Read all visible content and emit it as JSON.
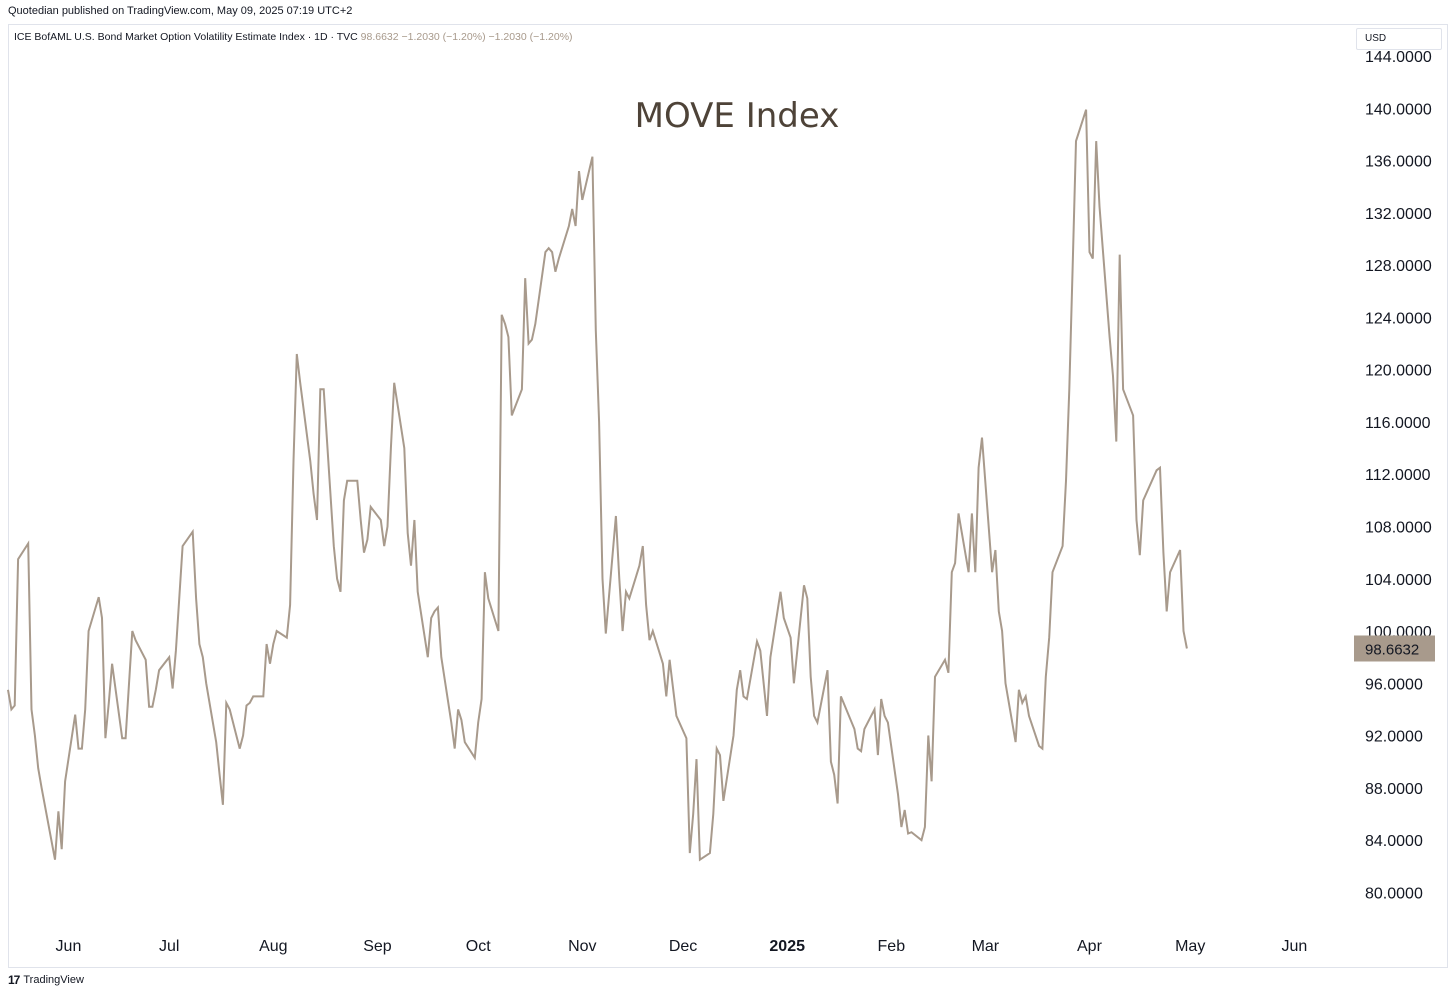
{
  "header": {
    "published": "Quotedian published on TradingView.com, May 09, 2025 07:19 UTC+2"
  },
  "legend": {
    "symbol": "ICE BofAML U.S. Bond Market Option Volatility Estimate Index · 1D · TVC",
    "values": "98.6632  −1.2030 (−1.20%)  −1.2030 (−1.20%)"
  },
  "currency_label": "USD",
  "footer": {
    "logo_glyph": "17",
    "brand": "TradingView"
  },
  "colors": {
    "line": "#a89a8c",
    "title": "#4e4338",
    "price_tag_bg": "#a89a8c",
    "price_tag_text": "#131722"
  },
  "chart_data": {
    "type": "line",
    "title": "MOVE Index",
    "xlabel": "",
    "ylabel": "",
    "ylim": [
      77.5,
      146
    ],
    "y_ticks": [
      80,
      84,
      88,
      92,
      96,
      100,
      104,
      108,
      112,
      116,
      120,
      124,
      128,
      132,
      136,
      140,
      144
    ],
    "y_tick_labels": [
      "80.0000",
      "84.0000",
      "88.0000",
      "92.0000",
      "96.0000",
      "100.0000",
      "104.0000",
      "108.0000",
      "112.0000",
      "116.0000",
      "120.0000",
      "124.0000",
      "128.0000",
      "132.0000",
      "136.0000",
      "140.0000",
      "144.0000"
    ],
    "x_range": [
      "2024-05-14",
      "2025-06-14"
    ],
    "x_ticks": [
      {
        "date": "2024-06-01",
        "label": "Jun",
        "bold": false
      },
      {
        "date": "2024-07-01",
        "label": "Jul",
        "bold": false
      },
      {
        "date": "2024-08-01",
        "label": "Aug",
        "bold": false
      },
      {
        "date": "2024-09-01",
        "label": "Sep",
        "bold": false
      },
      {
        "date": "2024-10-01",
        "label": "Oct",
        "bold": false
      },
      {
        "date": "2024-11-01",
        "label": "Nov",
        "bold": false
      },
      {
        "date": "2024-12-01",
        "label": "Dec",
        "bold": false
      },
      {
        "date": "2025-01-01",
        "label": "2025",
        "bold": true
      },
      {
        "date": "2025-02-01",
        "label": "Feb",
        "bold": false
      },
      {
        "date": "2025-03-01",
        "label": "Mar",
        "bold": false
      },
      {
        "date": "2025-04-01",
        "label": "Apr",
        "bold": false
      },
      {
        "date": "2025-05-01",
        "label": "May",
        "bold": false
      },
      {
        "date": "2025-06-01",
        "label": "Jun",
        "bold": false
      }
    ],
    "last_value_label": "98.6632",
    "grid": false,
    "series": [
      {
        "values": [
          [
            "2024-05-14",
            95.5
          ],
          [
            "2024-05-15",
            94.0
          ],
          [
            "2024-05-16",
            94.3
          ],
          [
            "2024-05-17",
            105.5
          ],
          [
            "2024-05-20",
            106.7
          ],
          [
            "2024-05-21",
            94.0
          ],
          [
            "2024-05-22",
            92.0
          ],
          [
            "2024-05-23",
            89.5
          ],
          [
            "2024-05-24",
            88.0
          ],
          [
            "2024-05-28",
            82.5
          ],
          [
            "2024-05-29",
            86.2
          ],
          [
            "2024-05-30",
            83.3
          ],
          [
            "2024-05-31",
            88.5
          ],
          [
            "2024-06-03",
            93.6
          ],
          [
            "2024-06-04",
            91.0
          ],
          [
            "2024-06-05",
            91.0
          ],
          [
            "2024-06-06",
            94.0
          ],
          [
            "2024-06-07",
            100.0
          ],
          [
            "2024-06-10",
            102.6
          ],
          [
            "2024-06-11",
            101.0
          ],
          [
            "2024-06-12",
            91.8
          ],
          [
            "2024-06-13",
            94.5
          ],
          [
            "2024-06-14",
            97.5
          ],
          [
            "2024-06-17",
            91.8
          ],
          [
            "2024-06-18",
            91.8
          ],
          [
            "2024-06-20",
            100.0
          ],
          [
            "2024-06-21",
            99.3
          ],
          [
            "2024-06-24",
            97.8
          ],
          [
            "2024-06-25",
            94.2
          ],
          [
            "2024-06-26",
            94.2
          ],
          [
            "2024-06-27",
            95.5
          ],
          [
            "2024-06-28",
            97.0
          ],
          [
            "2024-07-01",
            98.0
          ],
          [
            "2024-07-02",
            95.6
          ],
          [
            "2024-07-03",
            98.5
          ],
          [
            "2024-07-05",
            106.5
          ],
          [
            "2024-07-08",
            107.6
          ],
          [
            "2024-07-09",
            102.5
          ],
          [
            "2024-07-10",
            99.0
          ],
          [
            "2024-07-11",
            98.0
          ],
          [
            "2024-07-12",
            96.0
          ],
          [
            "2024-07-15",
            91.5
          ],
          [
            "2024-07-16",
            89.0
          ],
          [
            "2024-07-17",
            86.7
          ],
          [
            "2024-07-18",
            94.5
          ],
          [
            "2024-07-19",
            94.0
          ],
          [
            "2024-07-22",
            91.0
          ],
          [
            "2024-07-23",
            92.0
          ],
          [
            "2024-07-24",
            94.3
          ],
          [
            "2024-07-25",
            94.5
          ],
          [
            "2024-07-26",
            95.0
          ],
          [
            "2024-07-29",
            95.0
          ],
          [
            "2024-07-30",
            99.0
          ],
          [
            "2024-07-31",
            97.5
          ],
          [
            "2024-08-01",
            99.0
          ],
          [
            "2024-08-02",
            100.0
          ],
          [
            "2024-08-05",
            99.5
          ],
          [
            "2024-08-06",
            102.0
          ],
          [
            "2024-08-07",
            113.0
          ],
          [
            "2024-08-08",
            121.2
          ],
          [
            "2024-08-09",
            119.0
          ],
          [
            "2024-08-12",
            113.0
          ],
          [
            "2024-08-13",
            110.5
          ],
          [
            "2024-08-14",
            108.5
          ],
          [
            "2024-08-15",
            118.5
          ],
          [
            "2024-08-16",
            118.5
          ],
          [
            "2024-08-19",
            106.5
          ],
          [
            "2024-08-20",
            104.0
          ],
          [
            "2024-08-21",
            103.0
          ],
          [
            "2024-08-22",
            110.0
          ],
          [
            "2024-08-23",
            111.5
          ],
          [
            "2024-08-26",
            111.5
          ],
          [
            "2024-08-27",
            108.5
          ],
          [
            "2024-08-28",
            106.0
          ],
          [
            "2024-08-29",
            107.0
          ],
          [
            "2024-08-30",
            109.5
          ],
          [
            "2024-09-02",
            108.5
          ],
          [
            "2024-09-03",
            106.5
          ],
          [
            "2024-09-04",
            108.0
          ],
          [
            "2024-09-05",
            114.0
          ],
          [
            "2024-09-06",
            119.0
          ],
          [
            "2024-09-09",
            114.0
          ],
          [
            "2024-09-10",
            107.5
          ],
          [
            "2024-09-11",
            105.0
          ],
          [
            "2024-09-12",
            108.5
          ],
          [
            "2024-09-13",
            103.0
          ],
          [
            "2024-09-16",
            98.0
          ],
          [
            "2024-09-17",
            101.0
          ],
          [
            "2024-09-18",
            101.5
          ],
          [
            "2024-09-19",
            101.8
          ],
          [
            "2024-09-20",
            98.0
          ],
          [
            "2024-09-23",
            93.0
          ],
          [
            "2024-09-24",
            91.0
          ],
          [
            "2024-09-25",
            94.0
          ],
          [
            "2024-09-26",
            93.2
          ],
          [
            "2024-09-27",
            91.5
          ],
          [
            "2024-09-30",
            90.3
          ],
          [
            "2024-10-01",
            93.0
          ],
          [
            "2024-10-02",
            94.8
          ],
          [
            "2024-10-03",
            104.5
          ],
          [
            "2024-10-04",
            102.5
          ],
          [
            "2024-10-07",
            100.0
          ],
          [
            "2024-10-08",
            124.2
          ],
          [
            "2024-10-09",
            123.5
          ],
          [
            "2024-10-10",
            122.5
          ],
          [
            "2024-10-11",
            116.5
          ],
          [
            "2024-10-14",
            118.5
          ],
          [
            "2024-10-15",
            127.0
          ],
          [
            "2024-10-16",
            122.0
          ],
          [
            "2024-10-17",
            122.3
          ],
          [
            "2024-10-18",
            123.5
          ],
          [
            "2024-10-21",
            129.0
          ],
          [
            "2024-10-22",
            129.3
          ],
          [
            "2024-10-23",
            129.0
          ],
          [
            "2024-10-24",
            127.5
          ],
          [
            "2024-10-25",
            128.5
          ],
          [
            "2024-10-28",
            131.0
          ],
          [
            "2024-10-29",
            132.3
          ],
          [
            "2024-10-30",
            131.0
          ],
          [
            "2024-10-31",
            135.2
          ],
          [
            "2024-11-01",
            133.0
          ],
          [
            "2024-11-04",
            136.3
          ],
          [
            "2024-11-05",
            123.0
          ],
          [
            "2024-11-06",
            116.0
          ],
          [
            "2024-11-07",
            104.0
          ],
          [
            "2024-11-08",
            99.8
          ],
          [
            "2024-11-11",
            108.8
          ],
          [
            "2024-11-12",
            104.0
          ],
          [
            "2024-11-13",
            100.0
          ],
          [
            "2024-11-14",
            103.0
          ],
          [
            "2024-11-15",
            102.5
          ],
          [
            "2024-11-18",
            105.0
          ],
          [
            "2024-11-19",
            106.5
          ],
          [
            "2024-11-20",
            102.0
          ],
          [
            "2024-11-21",
            99.3
          ],
          [
            "2024-11-22",
            100.0
          ],
          [
            "2024-11-25",
            97.5
          ],
          [
            "2024-11-26",
            95.0
          ],
          [
            "2024-11-27",
            97.8
          ],
          [
            "2024-11-29",
            93.5
          ],
          [
            "2024-12-02",
            91.8
          ],
          [
            "2024-12-03",
            83.0
          ],
          [
            "2024-12-04",
            86.0
          ],
          [
            "2024-12-05",
            90.2
          ],
          [
            "2024-12-06",
            82.5
          ],
          [
            "2024-12-09",
            83.0
          ],
          [
            "2024-12-10",
            86.0
          ],
          [
            "2024-12-11",
            91.0
          ],
          [
            "2024-12-12",
            90.5
          ],
          [
            "2024-12-13",
            87.0
          ],
          [
            "2024-12-16",
            92.0
          ],
          [
            "2024-12-17",
            95.5
          ],
          [
            "2024-12-18",
            97.0
          ],
          [
            "2024-12-19",
            95.0
          ],
          [
            "2024-12-20",
            94.8
          ],
          [
            "2024-12-23",
            99.2
          ],
          [
            "2024-12-24",
            98.5
          ],
          [
            "2024-12-26",
            93.5
          ],
          [
            "2024-12-27",
            98.0
          ],
          [
            "2024-12-30",
            103.0
          ],
          [
            "2024-12-31",
            101.0
          ],
          [
            "2025-01-02",
            99.5
          ],
          [
            "2025-01-03",
            96.0
          ],
          [
            "2025-01-06",
            103.5
          ],
          [
            "2025-01-07",
            102.5
          ],
          [
            "2025-01-08",
            96.5
          ],
          [
            "2025-01-09",
            93.5
          ],
          [
            "2025-01-10",
            93.0
          ],
          [
            "2025-01-13",
            97.0
          ],
          [
            "2025-01-14",
            90.0
          ],
          [
            "2025-01-15",
            89.0
          ],
          [
            "2025-01-16",
            86.8
          ],
          [
            "2025-01-17",
            95.0
          ],
          [
            "2025-01-21",
            92.5
          ],
          [
            "2025-01-22",
            91.0
          ],
          [
            "2025-01-23",
            90.8
          ],
          [
            "2025-01-24",
            92.5
          ],
          [
            "2025-01-27",
            94.0
          ],
          [
            "2025-01-28",
            90.5
          ],
          [
            "2025-01-29",
            94.8
          ],
          [
            "2025-01-30",
            93.5
          ],
          [
            "2025-01-31",
            93.0
          ],
          [
            "2025-02-03",
            87.5
          ],
          [
            "2025-02-04",
            85.0
          ],
          [
            "2025-02-05",
            86.3
          ],
          [
            "2025-02-06",
            84.5
          ],
          [
            "2025-02-07",
            84.6
          ],
          [
            "2025-02-10",
            84.0
          ],
          [
            "2025-02-11",
            85.0
          ],
          [
            "2025-02-12",
            92.0
          ],
          [
            "2025-02-13",
            88.5
          ],
          [
            "2025-02-14",
            96.5
          ],
          [
            "2025-02-17",
            97.8
          ],
          [
            "2025-02-18",
            96.8
          ],
          [
            "2025-02-19",
            104.5
          ],
          [
            "2025-02-20",
            105.2
          ],
          [
            "2025-02-21",
            109.0
          ],
          [
            "2025-02-24",
            104.5
          ],
          [
            "2025-02-25",
            109.0
          ],
          [
            "2025-02-26",
            104.5
          ],
          [
            "2025-02-27",
            112.5
          ],
          [
            "2025-02-28",
            114.8
          ],
          [
            "2025-03-03",
            104.5
          ],
          [
            "2025-03-04",
            106.2
          ],
          [
            "2025-03-05",
            101.5
          ],
          [
            "2025-03-06",
            100.0
          ],
          [
            "2025-03-07",
            96.0
          ],
          [
            "2025-03-10",
            91.5
          ],
          [
            "2025-03-11",
            95.5
          ],
          [
            "2025-03-12",
            94.5
          ],
          [
            "2025-03-13",
            95.0
          ],
          [
            "2025-03-14",
            93.5
          ],
          [
            "2025-03-17",
            91.2
          ],
          [
            "2025-03-18",
            91.0
          ],
          [
            "2025-03-19",
            96.5
          ],
          [
            "2025-03-20",
            99.5
          ],
          [
            "2025-03-21",
            104.5
          ],
          [
            "2025-03-24",
            106.5
          ],
          [
            "2025-03-25",
            111.5
          ],
          [
            "2025-03-26",
            118.5
          ],
          [
            "2025-03-27",
            128.0
          ],
          [
            "2025-03-28",
            137.5
          ],
          [
            "2025-03-31",
            139.9
          ],
          [
            "2025-04-01",
            129.0
          ],
          [
            "2025-04-02",
            128.5
          ],
          [
            "2025-04-03",
            137.5
          ],
          [
            "2025-04-04",
            132.5
          ],
          [
            "2025-04-07",
            122.5
          ],
          [
            "2025-04-08",
            119.5
          ],
          [
            "2025-04-09",
            114.5
          ],
          [
            "2025-04-10",
            128.8
          ],
          [
            "2025-04-11",
            118.5
          ],
          [
            "2025-04-14",
            116.5
          ],
          [
            "2025-04-15",
            108.5
          ],
          [
            "2025-04-16",
            105.8
          ],
          [
            "2025-04-17",
            110.0
          ],
          [
            "2025-04-21",
            112.3
          ],
          [
            "2025-04-22",
            112.5
          ],
          [
            "2025-04-23",
            106.0
          ],
          [
            "2025-04-24",
            101.5
          ],
          [
            "2025-04-25",
            104.5
          ],
          [
            "2025-04-28",
            106.2
          ],
          [
            "2025-04-29",
            100.0
          ],
          [
            "2025-04-30",
            98.6632
          ]
        ]
      }
    ]
  }
}
